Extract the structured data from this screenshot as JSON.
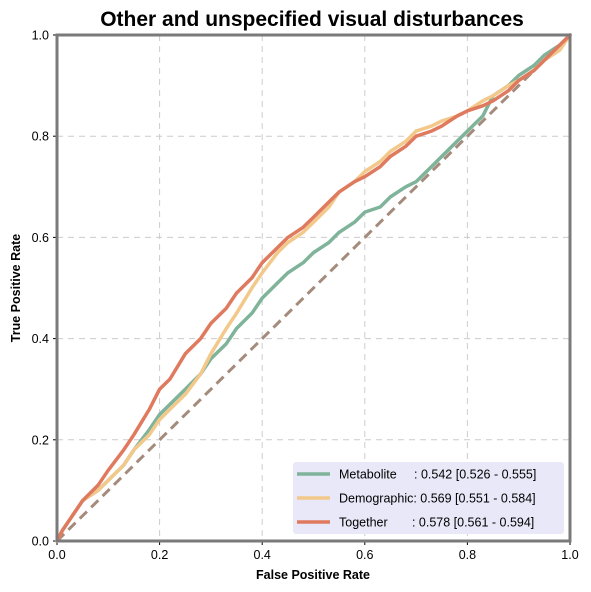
{
  "chart_data": {
    "type": "line",
    "title": "Other and unspecified visual disturbances",
    "xlabel": "False Positive Rate",
    "ylabel": "True Positive Rate",
    "xlim": [
      0,
      1
    ],
    "ylim": [
      0,
      1
    ],
    "x_ticks": [
      "0.0",
      "0.2",
      "0.4",
      "0.6",
      "0.8",
      "1.0"
    ],
    "y_ticks": [
      "0.0",
      "0.2",
      "0.4",
      "0.6",
      "0.8",
      "1.0"
    ],
    "grid": true,
    "legend_position": "bottom-right",
    "colors": {
      "diagonal": "#a58b7c",
      "legend_bg": "#e9e8f8",
      "frame": "#7a7a7a",
      "grid": "#cccccc"
    },
    "diagonal": {
      "x": [
        0,
        1
      ],
      "y": [
        0,
        1
      ]
    },
    "series": [
      {
        "name": "Metabolite",
        "legend_label": "Metabolite     : 0.542 [0.526 - 0.555]",
        "color": "#7fb39a",
        "x": [
          0,
          0.01,
          0.03,
          0.05,
          0.08,
          0.1,
          0.13,
          0.15,
          0.18,
          0.2,
          0.22,
          0.25,
          0.28,
          0.3,
          0.33,
          0.35,
          0.38,
          0.4,
          0.43,
          0.45,
          0.48,
          0.5,
          0.53,
          0.55,
          0.58,
          0.6,
          0.63,
          0.65,
          0.68,
          0.7,
          0.73,
          0.75,
          0.78,
          0.8,
          0.83,
          0.85,
          0.88,
          0.9,
          0.93,
          0.95,
          0.98,
          1.0
        ],
        "y": [
          0,
          0.02,
          0.05,
          0.08,
          0.1,
          0.12,
          0.15,
          0.18,
          0.22,
          0.25,
          0.27,
          0.3,
          0.33,
          0.36,
          0.39,
          0.42,
          0.45,
          0.48,
          0.51,
          0.53,
          0.55,
          0.57,
          0.59,
          0.61,
          0.63,
          0.65,
          0.66,
          0.68,
          0.7,
          0.71,
          0.74,
          0.76,
          0.79,
          0.81,
          0.84,
          0.88,
          0.9,
          0.92,
          0.94,
          0.96,
          0.98,
          1.0
        ]
      },
      {
        "name": "Demographic",
        "legend_label": "Demographic: 0.569 [0.551 - 0.584]",
        "color": "#f2c98b",
        "x": [
          0,
          0.01,
          0.03,
          0.05,
          0.08,
          0.1,
          0.13,
          0.15,
          0.18,
          0.2,
          0.22,
          0.25,
          0.28,
          0.3,
          0.33,
          0.35,
          0.38,
          0.4,
          0.43,
          0.45,
          0.48,
          0.5,
          0.53,
          0.55,
          0.58,
          0.6,
          0.63,
          0.65,
          0.68,
          0.7,
          0.73,
          0.75,
          0.78,
          0.8,
          0.83,
          0.85,
          0.88,
          0.9,
          0.93,
          0.95,
          0.98,
          1.0
        ],
        "y": [
          0,
          0.02,
          0.05,
          0.08,
          0.1,
          0.12,
          0.15,
          0.18,
          0.21,
          0.24,
          0.26,
          0.29,
          0.33,
          0.37,
          0.42,
          0.45,
          0.5,
          0.53,
          0.57,
          0.59,
          0.61,
          0.63,
          0.66,
          0.69,
          0.71,
          0.73,
          0.75,
          0.77,
          0.79,
          0.81,
          0.82,
          0.83,
          0.84,
          0.85,
          0.87,
          0.88,
          0.9,
          0.91,
          0.93,
          0.95,
          0.97,
          1.0
        ]
      },
      {
        "name": "Together",
        "legend_label": "Together       : 0.578 [0.561 - 0.594]",
        "color": "#e07a5f",
        "x": [
          0,
          0.01,
          0.03,
          0.05,
          0.08,
          0.1,
          0.13,
          0.15,
          0.18,
          0.2,
          0.22,
          0.25,
          0.28,
          0.3,
          0.33,
          0.35,
          0.38,
          0.4,
          0.43,
          0.45,
          0.48,
          0.5,
          0.53,
          0.55,
          0.58,
          0.6,
          0.63,
          0.65,
          0.68,
          0.7,
          0.73,
          0.75,
          0.78,
          0.8,
          0.83,
          0.85,
          0.88,
          0.9,
          0.93,
          0.95,
          0.98,
          1.0
        ],
        "y": [
          0,
          0.02,
          0.05,
          0.08,
          0.11,
          0.14,
          0.18,
          0.21,
          0.26,
          0.3,
          0.32,
          0.37,
          0.4,
          0.43,
          0.46,
          0.49,
          0.52,
          0.55,
          0.58,
          0.6,
          0.62,
          0.64,
          0.67,
          0.69,
          0.71,
          0.72,
          0.74,
          0.76,
          0.78,
          0.8,
          0.81,
          0.82,
          0.84,
          0.85,
          0.86,
          0.87,
          0.89,
          0.91,
          0.93,
          0.95,
          0.98,
          1.0
        ]
      }
    ]
  }
}
